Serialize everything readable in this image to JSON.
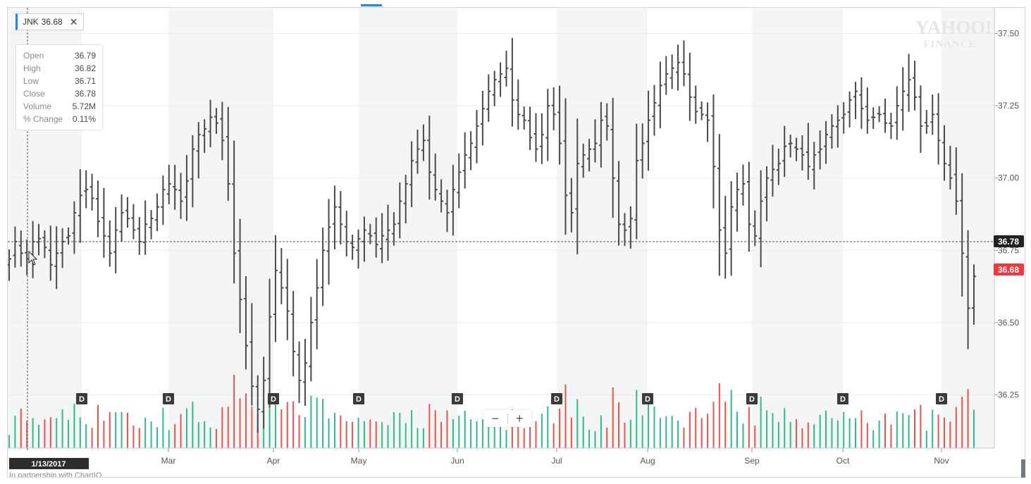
{
  "ticker": {
    "symbol": "JNK",
    "price": "36.68",
    "close_glyph": "✕"
  },
  "watermark": {
    "line1": "YAHOO!",
    "line2": "FINANCE"
  },
  "tooltip": {
    "rows": [
      {
        "label": "Open",
        "value": "36.79"
      },
      {
        "label": "High",
        "value": "36.82"
      },
      {
        "label": "Low",
        "value": "36.71"
      },
      {
        "label": "Close",
        "value": "36.78"
      },
      {
        "label": "Volume",
        "value": "5.72M"
      },
      {
        "label": "% Change",
        "value": "0.11%"
      }
    ]
  },
  "crosshair": {
    "date": "1/13/2017",
    "price": "36.78"
  },
  "current_price_tag": "36.68",
  "zoom": {
    "minus": "−",
    "plus": "+"
  },
  "partner_text": "In partnership with ChartIQ",
  "colors": {
    "bar": "#4a4a4a",
    "volume_up": "#2ebd85",
    "volume_down": "#f0514a",
    "price_tag_current": "#f0383e",
    "price_tag_crosshair": "#222222",
    "month_shade": "#f4f6f6",
    "dividend_marker": "#3a3a3a"
  },
  "chart_data": {
    "type": "ohlc",
    "y_axis": {
      "ticks": [
        "37.50",
        "37.25",
        "37.00",
        "36.75",
        "36.50",
        "36.25"
      ],
      "ylim": [
        36.08,
        37.56
      ]
    },
    "x_axis": {
      "labels": [
        "Mar",
        "Apr",
        "May",
        "Jun",
        "Jul",
        "Aug",
        "Sep",
        "Oct",
        "Nov"
      ]
    },
    "dividend_marker_label": "D",
    "dividend_months": [
      "Feb",
      "Mar",
      "Apr",
      "May",
      "Jun",
      "Jul",
      "Aug",
      "Sep",
      "Oct",
      "Nov"
    ],
    "grid": true,
    "close": [
      36.72,
      36.78,
      36.74,
      36.72,
      36.78,
      36.79,
      36.76,
      36.7,
      36.74,
      36.78,
      36.8,
      36.88,
      36.94,
      36.96,
      36.93,
      36.85,
      36.8,
      36.74,
      36.82,
      36.88,
      36.86,
      36.82,
      36.78,
      36.84,
      36.86,
      36.9,
      36.96,
      36.98,
      36.96,
      36.92,
      36.99,
      37.1,
      37.15,
      37.17,
      37.21,
      37.19,
      37.13,
      36.98,
      36.74,
      36.58,
      36.42,
      36.28,
      36.2,
      36.3,
      36.52,
      36.68,
      36.62,
      36.54,
      36.4,
      36.3,
      36.36,
      36.5,
      36.62,
      36.75,
      36.83,
      36.9,
      36.84,
      36.78,
      36.76,
      36.79,
      36.82,
      36.8,
      36.77,
      36.8,
      36.82,
      36.84,
      36.92,
      36.98,
      37.06,
      37.1,
      37.13,
      37.02,
      36.96,
      36.92,
      36.88,
      36.96,
      37.02,
      37.08,
      37.12,
      37.18,
      37.24,
      37.3,
      37.34,
      37.36,
      37.38,
      37.27,
      37.22,
      37.2,
      37.14,
      37.1,
      37.15,
      37.25,
      37.22,
      37.12,
      36.94,
      36.88,
      37.05,
      37.08,
      37.1,
      37.12,
      37.2,
      37.18,
      37.0,
      36.84,
      36.82,
      36.86,
      37.06,
      37.12,
      37.2,
      37.26,
      37.32,
      37.36,
      37.38,
      37.4,
      37.36,
      37.28,
      37.23,
      37.22,
      37.2,
      37.04,
      36.82,
      36.74,
      36.9,
      36.96,
      36.98,
      36.84,
      36.8,
      36.92,
      37.0,
      37.03,
      37.05,
      37.11,
      37.12,
      37.1,
      37.08,
      37.04,
      37.08,
      37.1,
      37.15,
      37.18,
      37.2,
      37.22,
      37.27,
      37.3,
      37.24,
      37.2,
      37.21,
      37.22,
      37.19,
      37.18,
      37.25,
      37.3,
      37.34,
      37.28,
      37.18,
      37.18,
      37.22,
      37.13,
      37.05,
      37.0,
      36.92,
      36.74,
      36.55,
      36.66
    ]
  }
}
